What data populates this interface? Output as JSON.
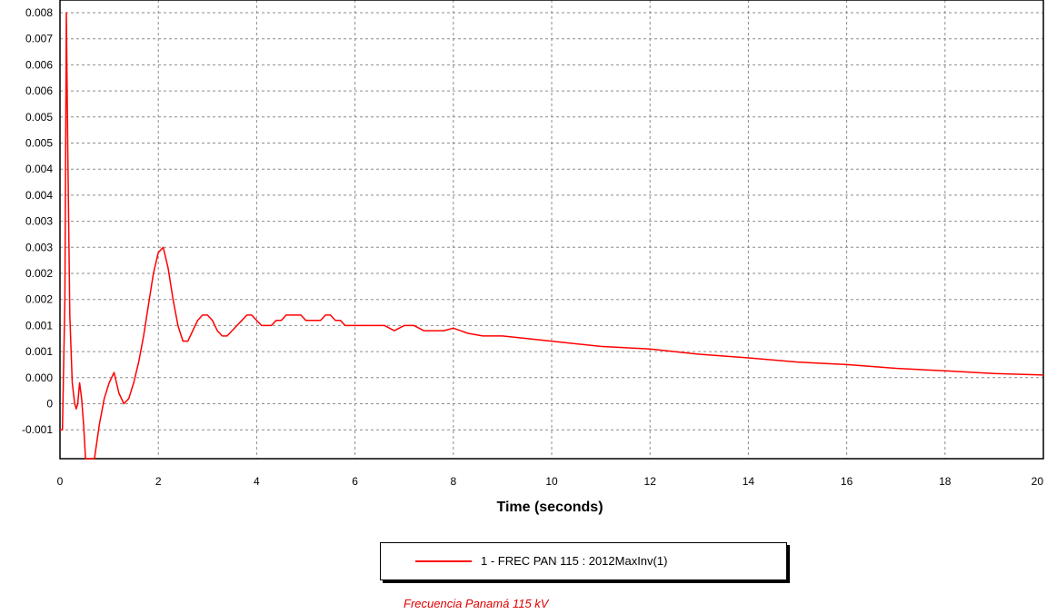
{
  "colors": {
    "series": "#ff0000",
    "grid": "#8c8c8c",
    "caption": "#e00000"
  },
  "chart_data": {
    "type": "line",
    "title": "",
    "xlabel": "Time (seconds)",
    "ylabel": "",
    "xlim": [
      0,
      20
    ],
    "ylim": [
      -0.0015,
      0.008
    ],
    "grid": true,
    "legend_position": "bottom-center",
    "x_ticks": [
      "0",
      "2",
      "4",
      "6",
      "8",
      "10",
      "12",
      "14",
      "16",
      "18",
      "20"
    ],
    "y_ticks": [
      "0.008",
      "0.007",
      "0.006",
      "0.006",
      "0.005",
      "0.005",
      "0.004",
      "0.004",
      "0.003",
      "0.003",
      "0.002",
      "0.002",
      "0.001",
      "0.001",
      "0.000",
      "0",
      "-0.001"
    ],
    "series": [
      {
        "name": "1 - FREC PAN 115 : 2012MaxInv(1)",
        "color": "#ff0000",
        "x": [
          0,
          0.05,
          0.1,
          0.13,
          0.16,
          0.2,
          0.25,
          0.3,
          0.33,
          0.36,
          0.4,
          0.44,
          0.48,
          0.52,
          0.56,
          0.6,
          0.65,
          0.7,
          0.8,
          0.9,
          1.0,
          1.1,
          1.2,
          1.3,
          1.4,
          1.5,
          1.6,
          1.7,
          1.8,
          1.9,
          2.0,
          2.1,
          2.2,
          2.3,
          2.4,
          2.5,
          2.6,
          2.7,
          2.8,
          2.9,
          3.0,
          3.1,
          3.2,
          3.3,
          3.4,
          3.5,
          3.6,
          3.7,
          3.8,
          3.9,
          4.0,
          4.1,
          4.2,
          4.3,
          4.4,
          4.5,
          4.6,
          4.7,
          4.8,
          4.9,
          5.0,
          5.1,
          5.2,
          5.3,
          5.4,
          5.5,
          5.6,
          5.7,
          5.8,
          5.9,
          6.0,
          6.2,
          6.4,
          6.6,
          6.8,
          7.0,
          7.2,
          7.4,
          7.6,
          7.8,
          8.0,
          8.3,
          8.6,
          9.0,
          10.0,
          11.0,
          12.0,
          13.0,
          14.0,
          15.0,
          16.0,
          17.0,
          18.0,
          19.0,
          20.0
        ],
        "y": [
          0.0,
          0.0,
          0.0025,
          0.008,
          0.0052,
          0.0022,
          0.0009,
          0.0005,
          0.0004,
          0.0005,
          0.0009,
          0.0006,
          0.0001,
          -0.0007,
          -0.0014,
          -0.0015,
          -0.0012,
          -0.0006,
          0.0001,
          0.0006,
          0.0009,
          0.0011,
          0.0007,
          0.0005,
          0.0006,
          0.0009,
          0.0013,
          0.0018,
          0.0024,
          0.003,
          0.0034,
          0.0035,
          0.0031,
          0.0025,
          0.002,
          0.0017,
          0.0017,
          0.0019,
          0.0021,
          0.0022,
          0.0022,
          0.0021,
          0.0019,
          0.0018,
          0.0018,
          0.0019,
          0.002,
          0.0021,
          0.0022,
          0.0022,
          0.0021,
          0.002,
          0.002,
          0.002,
          0.0021,
          0.0021,
          0.0022,
          0.0022,
          0.0022,
          0.0022,
          0.0021,
          0.0021,
          0.0021,
          0.0021,
          0.0022,
          0.0022,
          0.0021,
          0.0021,
          0.002,
          0.002,
          0.002,
          0.002,
          0.002,
          0.002,
          0.0019,
          0.002,
          0.002,
          0.0019,
          0.0019,
          0.0019,
          0.00195,
          0.00185,
          0.0018,
          0.0018,
          0.0017,
          0.0016,
          0.00155,
          0.00145,
          0.00138,
          0.0013,
          0.00125,
          0.00118,
          0.00113,
          0.00108,
          0.00105
        ]
      }
    ]
  },
  "legend": {
    "entry": "1 - FREC PAN 115 : 2012MaxInv(1)"
  },
  "caption": "Frecuencia Panamá 115 kV"
}
